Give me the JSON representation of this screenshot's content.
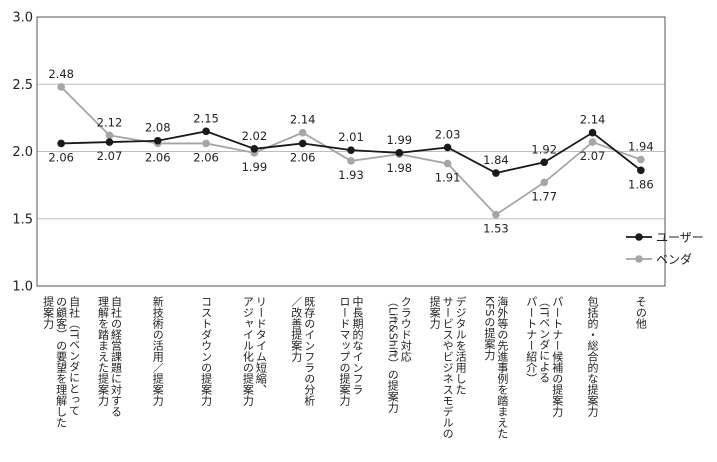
{
  "chart_data": {
    "type": "line",
    "categories": [
      [
        "自社（ITベンダにとって",
        "の顧客）の要望を理解した",
        "提案力"
      ],
      [
        "自社の経営課題に対する",
        "理解を踏まえた提案力"
      ],
      [
        "新技術の活用／提案力"
      ],
      [
        "コストダウンの提案力"
      ],
      [
        "リードタイム短縮、",
        "アジャイル化の提案力"
      ],
      [
        "既存のインフラの分析",
        "／改善提案力"
      ],
      [
        "中長期的なインフラ",
        "ロードマップの提案力"
      ],
      [
        "クラウド対応",
        "（Lift&Shift）の提案力"
      ],
      [
        "デジタルを活用した",
        "サービスやビジネスモデルの",
        "提案力"
      ],
      [
        "海外等の先進事例を踏まえた",
        "KFSの提案力"
      ],
      [
        "パートナー候補の提案力",
        "（ITベンダによる",
        "パートナー紹介）"
      ],
      [
        "包括的・総合的な提案力"
      ],
      [
        "その他"
      ]
    ],
    "series": [
      {
        "name": "ユーザー",
        "color": "#1a1a1a",
        "values": [
          2.06,
          2.07,
          2.08,
          2.15,
          2.02,
          2.06,
          2.01,
          1.99,
          2.03,
          1.84,
          1.92,
          2.14,
          1.86
        ],
        "labels": [
          "2.06",
          "2.07",
          "2.08",
          "2.15",
          "2.02",
          "2.06",
          "2.01",
          "1.99",
          "2.03",
          "1.84",
          "1.92",
          "2.14",
          "1.86"
        ]
      },
      {
        "name": "ベンダ",
        "color": "#a6a6a6",
        "values": [
          2.48,
          2.12,
          2.06,
          2.06,
          1.99,
          2.14,
          1.93,
          1.98,
          1.91,
          1.53,
          1.77,
          2.07,
          1.94
        ],
        "labels": [
          "2.48",
          "2.12",
          "2.06",
          "2.06",
          "1.99",
          "2.14",
          "1.93",
          "1.98",
          "1.91",
          "1.53",
          "1.77",
          "2.07",
          "1.94"
        ]
      }
    ],
    "ylim": [
      1.0,
      3.0
    ],
    "yticks": [
      "1.0",
      "1.5",
      "2.0",
      "2.5",
      "3.0"
    ],
    "grid": true,
    "legend_position": "right"
  }
}
